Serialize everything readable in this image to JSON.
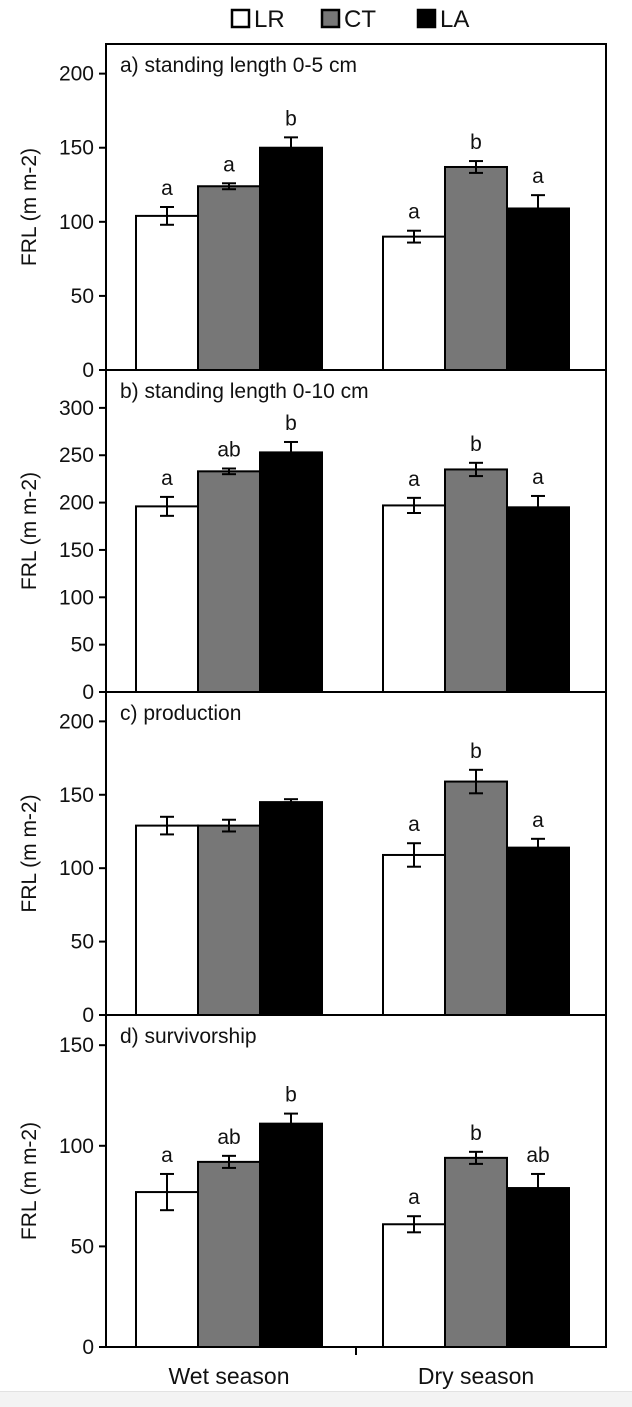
{
  "legend": {
    "items": [
      {
        "label": "LR",
        "color": "#ffffff"
      },
      {
        "label": "CT",
        "color": "#777777"
      },
      {
        "label": "LA",
        "color": "#000000"
      }
    ]
  },
  "groups": [
    "Wet season",
    "Dry season"
  ],
  "chart_data": [
    {
      "type": "bar",
      "title": "a) standing length 0-5 cm",
      "ylabel": "FRL (m m-2)",
      "ylim": [
        0,
        220
      ],
      "yticks": [
        0,
        50,
        100,
        150,
        200
      ],
      "categories": [
        "Wet season",
        "Dry season"
      ],
      "series": [
        {
          "name": "LR",
          "values": [
            104,
            90
          ],
          "errors": [
            6,
            4
          ],
          "letters": [
            "a",
            "a"
          ]
        },
        {
          "name": "CT",
          "values": [
            124,
            137
          ],
          "errors": [
            2,
            4
          ],
          "letters": [
            "a",
            "b"
          ]
        },
        {
          "name": "LA",
          "values": [
            150,
            109
          ],
          "errors": [
            7,
            9
          ],
          "letters": [
            "b",
            "a"
          ]
        }
      ]
    },
    {
      "type": "bar",
      "title": "b) standing length 0-10 cm",
      "ylabel": "FRL (m m-2)",
      "ylim": [
        0,
        340
      ],
      "yticks": [
        0,
        50,
        100,
        150,
        200,
        250,
        300
      ],
      "categories": [
        "Wet season",
        "Dry season"
      ],
      "series": [
        {
          "name": "LR",
          "values": [
            196,
            197
          ],
          "errors": [
            10,
            8
          ],
          "letters": [
            "a",
            "a"
          ]
        },
        {
          "name": "CT",
          "values": [
            233,
            235
          ],
          "errors": [
            3,
            7
          ],
          "letters": [
            "ab",
            "b"
          ]
        },
        {
          "name": "LA",
          "values": [
            253,
            195
          ],
          "errors": [
            11,
            12
          ],
          "letters": [
            "b",
            "a"
          ]
        }
      ]
    },
    {
      "type": "bar",
      "title": "c) production",
      "ylabel": "FRL (m m-2)",
      "ylim": [
        0,
        220
      ],
      "yticks": [
        0,
        50,
        100,
        150,
        200
      ],
      "categories": [
        "Wet season",
        "Dry season"
      ],
      "series": [
        {
          "name": "LR",
          "values": [
            129,
            109
          ],
          "errors": [
            6,
            8
          ],
          "letters": [
            "",
            "a"
          ]
        },
        {
          "name": "CT",
          "values": [
            129,
            159
          ],
          "errors": [
            4,
            8
          ],
          "letters": [
            "",
            "b"
          ]
        },
        {
          "name": "LA",
          "values": [
            145,
            114
          ],
          "errors": [
            2,
            6
          ],
          "letters": [
            "",
            "a"
          ]
        }
      ]
    },
    {
      "type": "bar",
      "title": "d) survivorship",
      "ylabel": "FRL (m m-2)",
      "ylim": [
        0,
        165
      ],
      "yticks": [
        0,
        50,
        100,
        150
      ],
      "categories": [
        "Wet season",
        "Dry season"
      ],
      "series": [
        {
          "name": "LR",
          "values": [
            77,
            61
          ],
          "errors": [
            9,
            4
          ],
          "letters": [
            "a",
            "a"
          ]
        },
        {
          "name": "CT",
          "values": [
            92,
            94
          ],
          "errors": [
            3,
            3
          ],
          "letters": [
            "ab",
            "b"
          ]
        },
        {
          "name": "LA",
          "values": [
            111,
            79
          ],
          "errors": [
            5,
            7
          ],
          "letters": [
            "b",
            "ab"
          ]
        }
      ]
    }
  ]
}
